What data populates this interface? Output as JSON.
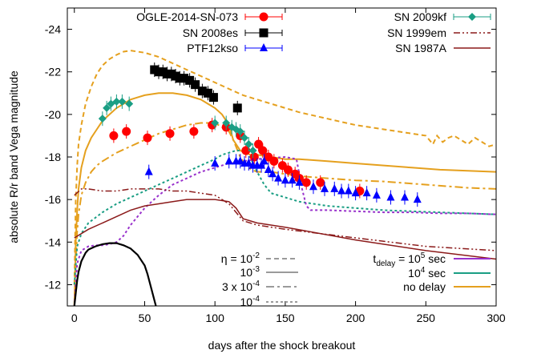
{
  "chart_data": {
    "type": "scatter",
    "xlabel": "days after the shock breakout",
    "ylabel": "absolute R/r band Vega magnitude",
    "xlim": [
      -5,
      300
    ],
    "ylim": [
      -11,
      -25
    ],
    "y_inverted": true,
    "xticks": [
      0,
      50,
      100,
      150,
      200,
      250,
      300
    ],
    "yticks": [
      -12,
      -14,
      -16,
      -18,
      -20,
      -22,
      -24
    ],
    "grid": false,
    "legend_position": "top",
    "observations": [
      {
        "name": "OGLE-2014-SN-073",
        "color": "#ff0000",
        "marker": "circle",
        "x": [
          28,
          37,
          52,
          68,
          85,
          98,
          108,
          118,
          122,
          128,
          131,
          134,
          138,
          142,
          148,
          152,
          157,
          160,
          165,
          175,
          203
        ],
        "y": [
          -19.0,
          -19.2,
          -18.9,
          -19.1,
          -19.2,
          -19.5,
          -19.4,
          -19.0,
          -18.3,
          -18.0,
          -18.6,
          -18.3,
          -18.0,
          -17.8,
          -17.6,
          -17.4,
          -17.2,
          -17.0,
          -16.8,
          -16.8,
          -16.4
        ]
      },
      {
        "name": "SN 2008es",
        "color": "#000000",
        "marker": "square",
        "x": [
          57,
          60,
          63,
          66,
          69,
          72,
          75,
          78,
          82,
          86,
          91,
          95,
          99,
          116
        ],
        "y": [
          -22.1,
          -22.0,
          -22.0,
          -21.9,
          -21.9,
          -21.8,
          -21.7,
          -21.7,
          -21.6,
          -21.4,
          -21.1,
          -21.0,
          -20.8,
          -20.3
        ]
      },
      {
        "name": "PTF12kso",
        "color": "#0000ff",
        "marker": "triangle",
        "x": [
          53,
          100,
          110,
          115,
          118,
          121,
          124,
          127,
          130,
          133,
          135,
          138,
          141,
          145,
          150,
          155,
          160,
          170,
          178,
          185,
          190,
          195,
          200,
          208,
          215,
          225,
          235,
          244
        ],
        "y": [
          -17.3,
          -17.7,
          -17.8,
          -17.8,
          -17.8,
          -17.7,
          -17.7,
          -17.6,
          -17.6,
          -17.6,
          -17.8,
          -17.4,
          -17.2,
          -17.0,
          -16.9,
          -16.9,
          -16.8,
          -16.6,
          -16.5,
          -16.5,
          -16.4,
          -16.4,
          -16.3,
          -16.3,
          -16.2,
          -16.1,
          -16.1,
          -16.0
        ]
      },
      {
        "name": "SN 2009kf",
        "color": "#1a9e84",
        "marker": "diamond",
        "x": [
          20,
          23,
          26,
          30,
          34,
          39,
          100,
          108,
          112,
          115,
          118,
          121,
          124,
          127
        ],
        "y": [
          -19.8,
          -20.3,
          -20.5,
          -20.6,
          -20.6,
          -20.5,
          -19.6,
          -19.6,
          -19.4,
          -19.3,
          -19.2,
          -18.9,
          -18.6,
          -18.3
        ]
      }
    ],
    "references": [
      {
        "name": "SN 1999em",
        "color": "#8b1a1a",
        "dash": "8,3,2,3,2,3",
        "x": [
          0,
          5,
          10,
          20,
          30,
          40,
          50,
          60,
          70,
          80,
          90,
          100,
          105,
          110,
          115,
          120,
          130,
          150,
          200,
          250,
          300
        ],
        "y": [
          -16.2,
          -16.5,
          -16.5,
          -16.4,
          -16.4,
          -16.5,
          -16.5,
          -16.5,
          -16.4,
          -16.4,
          -16.3,
          -16.2,
          -16.0,
          -15.8,
          -15.4,
          -15.0,
          -14.8,
          -14.6,
          -14.2,
          -13.8,
          -13.6
        ]
      },
      {
        "name": "SN 1987A",
        "color": "#8b1a1a",
        "dash": "",
        "x": [
          0,
          10,
          20,
          30,
          40,
          50,
          60,
          70,
          80,
          90,
          100,
          110,
          115,
          120,
          130,
          150,
          200,
          250,
          300
        ],
        "y": [
          -14.2,
          -14.6,
          -14.9,
          -15.2,
          -15.5,
          -15.7,
          -15.8,
          -15.9,
          -16.0,
          -16.0,
          -16.0,
          -15.9,
          -15.6,
          -15.1,
          -14.9,
          -14.7,
          -14.1,
          -13.6,
          -13.2
        ]
      }
    ],
    "models": [
      {
        "name": "η = 10⁻², no delay",
        "color": "#e5a01e",
        "dash": "6,4",
        "x": [
          0,
          1,
          2,
          3,
          5,
          8,
          12,
          16,
          20,
          25,
          30,
          35,
          40,
          45,
          50,
          60,
          70,
          80,
          90,
          100,
          110,
          120,
          125,
          130,
          140,
          150,
          160,
          170,
          180,
          190,
          200,
          210,
          220,
          230,
          240,
          250,
          255,
          258,
          262,
          266,
          270,
          275,
          280,
          285,
          290,
          295,
          300
        ],
        "y": [
          -12.0,
          -16.0,
          -17.6,
          -18.6,
          -19.5,
          -20.5,
          -21.3,
          -21.9,
          -22.3,
          -22.6,
          -22.8,
          -22.95,
          -23.0,
          -22.95,
          -22.9,
          -22.7,
          -22.4,
          -22.1,
          -21.8,
          -21.5,
          -21.2,
          -20.9,
          -20.8,
          -20.7,
          -20.5,
          -20.3,
          -20.1,
          -19.95,
          -19.8,
          -19.65,
          -19.5,
          -19.4,
          -19.3,
          -19.2,
          -19.1,
          -19.0,
          -18.6,
          -19.0,
          -18.7,
          -18.9,
          -19.0,
          -18.8,
          -18.6,
          -18.9,
          -18.7,
          -18.5,
          -18.6
        ]
      },
      {
        "name": "η = 10⁻³, no delay",
        "color": "#e5a01e",
        "dash": "",
        "x": [
          0,
          1,
          2,
          3,
          5,
          8,
          12,
          16,
          20,
          25,
          30,
          35,
          40,
          45,
          50,
          60,
          70,
          80,
          90,
          95,
          100,
          105,
          110,
          113,
          118,
          122,
          125,
          130,
          140,
          150,
          160,
          180,
          200,
          220,
          240,
          260,
          280,
          300
        ],
        "y": [
          -11.0,
          -14.0,
          -15.5,
          -16.5,
          -17.5,
          -18.3,
          -18.9,
          -19.3,
          -19.7,
          -20.0,
          -20.3,
          -20.5,
          -20.7,
          -20.8,
          -20.9,
          -21.0,
          -21.0,
          -20.9,
          -20.7,
          -20.5,
          -20.3,
          -20.0,
          -19.5,
          -18.8,
          -18.3,
          -18.2,
          -18.1,
          -18.1,
          -18.0,
          -17.9,
          -17.9,
          -17.8,
          -17.7,
          -17.6,
          -17.5,
          -17.4,
          -17.35,
          -17.3
        ]
      },
      {
        "name": "η = 3 x 10⁻⁴, no delay",
        "color": "#e5a01e",
        "dash": "10,4,3,4",
        "x": [
          0,
          1,
          2,
          3,
          5,
          8,
          12,
          16,
          20,
          25,
          30,
          40,
          50,
          60,
          70,
          80,
          90,
          95,
          100,
          105,
          110,
          113,
          118,
          122,
          126,
          130,
          140,
          150,
          160,
          180,
          200,
          220,
          240,
          260,
          280,
          300
        ],
        "y": [
          -11.0,
          -13.0,
          -14.5,
          -15.3,
          -16.2,
          -16.8,
          -17.3,
          -17.6,
          -17.8,
          -18.0,
          -18.2,
          -18.5,
          -18.8,
          -19.1,
          -19.3,
          -19.5,
          -19.6,
          -19.6,
          -19.6,
          -19.4,
          -19.2,
          -18.8,
          -18.0,
          -17.6,
          -17.4,
          -17.3,
          -17.3,
          -17.2,
          -17.1,
          -17.0,
          -16.9,
          -16.85,
          -16.75,
          -16.65,
          -16.55,
          -16.5
        ]
      },
      {
        "name": "η = 10⁻⁴, t_delay = 10⁴ sec",
        "color": "#1a9e84",
        "dash": "3,3",
        "x": [
          0,
          2,
          5,
          10,
          20,
          30,
          40,
          50,
          60,
          70,
          80,
          90,
          100,
          105,
          110,
          115,
          120,
          125,
          130,
          135,
          140,
          150,
          160,
          180,
          200,
          220,
          240,
          260,
          280,
          300
        ],
        "y": [
          -12.0,
          -13.8,
          -14.4,
          -14.9,
          -15.4,
          -15.8,
          -16.1,
          -16.4,
          -16.7,
          -17.0,
          -17.3,
          -17.6,
          -17.9,
          -18.1,
          -18.2,
          -18.3,
          -18.3,
          -18.0,
          -17.3,
          -16.7,
          -16.3,
          -16.1,
          -15.9,
          -15.7,
          -15.6,
          -15.5,
          -15.45,
          -15.4,
          -15.35,
          -15.3
        ]
      },
      {
        "name": "η = 10⁻⁴, t_delay = 10⁵ sec",
        "color": "#9932cc",
        "dash": "3,3",
        "x": [
          0,
          2,
          5,
          10,
          15,
          20,
          25,
          30,
          35,
          40,
          50,
          60,
          70,
          80,
          90,
          100,
          110,
          120,
          130,
          140,
          150,
          158,
          162,
          165,
          168,
          170,
          175,
          180,
          200,
          220,
          240,
          260,
          280,
          300
        ],
        "y": [
          -11.0,
          -13.0,
          -13.6,
          -13.8,
          -13.85,
          -13.85,
          -13.9,
          -14.0,
          -14.3,
          -14.8,
          -15.6,
          -16.2,
          -16.7,
          -17.0,
          -17.3,
          -17.5,
          -17.7,
          -17.8,
          -17.9,
          -17.95,
          -18.0,
          -17.9,
          -16.5,
          -15.7,
          -15.5,
          -15.5,
          -15.5,
          -15.5,
          -15.45,
          -15.4,
          -15.4,
          -15.35,
          -15.35,
          -15.3
        ]
      },
      {
        "name": "black curve",
        "color": "#000000",
        "dash": "",
        "x": [
          0,
          1,
          2,
          3,
          5,
          8,
          10,
          15,
          20,
          25,
          30,
          35,
          40,
          45,
          50,
          52,
          54,
          56,
          58
        ],
        "y": [
          -11.0,
          -11.6,
          -12.2,
          -12.6,
          -13.1,
          -13.5,
          -13.65,
          -13.8,
          -13.9,
          -13.95,
          -13.95,
          -13.85,
          -13.7,
          -13.4,
          -12.9,
          -12.5,
          -12.0,
          -11.5,
          -11.0
        ]
      }
    ],
    "legend": {
      "observations": [
        "OGLE-2014-SN-073",
        "SN 2008es",
        "PTF12kso",
        "SN 2009kf"
      ],
      "references": [
        "SN 1999em",
        "SN 1987A"
      ],
      "eta_legend": [
        {
          "label": "η = 10",
          "sup": "-2",
          "dash": "6,4"
        },
        {
          "label": "10",
          "sup": "-3",
          "dash": ""
        },
        {
          "label": "3 x 10",
          "sup": "-4",
          "dash": "10,4,3,4"
        },
        {
          "label": "10",
          "sup": "-4",
          "dash": "3,3"
        }
      ],
      "delay_legend": [
        {
          "label": "t",
          "sub": "delay",
          "tail": " = 10",
          "sup": "5",
          "tail2": " sec",
          "color": "#9932cc"
        },
        {
          "label": "10",
          "sup": "4",
          "tail2": " sec",
          "color": "#1a9e84"
        },
        {
          "label": "no delay",
          "color": "#e5a01e"
        }
      ]
    }
  }
}
